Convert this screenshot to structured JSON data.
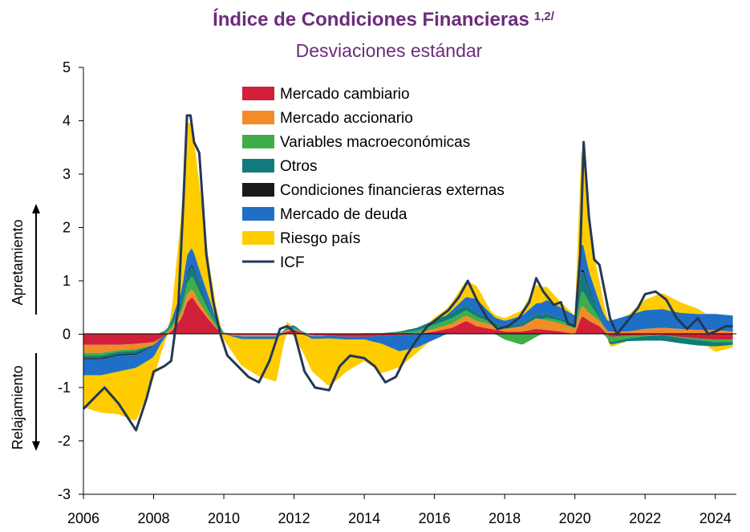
{
  "chart_data": {
    "type": "area",
    "title": "Índice de Condiciones Financieras",
    "title_superscript": "1,2/",
    "subtitle": "Desviaciones estándar",
    "ylim": [
      -3,
      5
    ],
    "xlim": [
      2006,
      2024.6
    ],
    "y_ticks": [
      "5",
      "4",
      "3",
      "2",
      "1",
      "0",
      "-1",
      "-2",
      "-3"
    ],
    "x_ticks": [
      "2006",
      "2008",
      "2010",
      "2012",
      "2014",
      "2016",
      "2018",
      "2020",
      "2022",
      "2024"
    ],
    "y_label_up": "Apretamiento",
    "y_label_down": "Relajamiento",
    "legend_position": "top-center",
    "series": [
      {
        "name": "Mercado cambiario",
        "color": "#d0203a",
        "x": [
          2006.0,
          2006.5,
          2007.0,
          2007.5,
          2008.0,
          2008.5,
          2008.8,
          2008.95,
          2009.1,
          2009.3,
          2009.6,
          2009.8,
          2010.0,
          2010.5,
          2011.0,
          2011.5,
          2011.8,
          2012.0,
          2012.5,
          2013.0,
          2013.5,
          2014.0,
          2014.5,
          2015.0,
          2015.5,
          2016.0,
          2016.5,
          2016.9,
          2017.2,
          2017.6,
          2018.0,
          2018.5,
          2018.9,
          2019.2,
          2019.6,
          2020.0,
          2020.2,
          2020.4,
          2020.7,
          2021.0,
          2021.5,
          2022.0,
          2022.5,
          2023.0,
          2023.5,
          2024.0,
          2024.5
        ],
        "y": [
          -0.2,
          -0.2,
          -0.2,
          -0.18,
          -0.15,
          0.05,
          0.3,
          0.6,
          0.7,
          0.5,
          0.25,
          0.1,
          0.0,
          -0.02,
          -0.02,
          -0.02,
          0.05,
          0.08,
          -0.02,
          -0.03,
          -0.05,
          -0.05,
          -0.03,
          -0.02,
          0.0,
          0.05,
          0.12,
          0.25,
          0.15,
          0.1,
          0.05,
          0.05,
          0.1,
          0.08,
          0.05,
          0.0,
          0.35,
          0.25,
          0.15,
          -0.05,
          -0.03,
          -0.02,
          -0.02,
          -0.05,
          -0.08,
          -0.1,
          -0.1
        ]
      },
      {
        "name": "Mercado accionario",
        "color": "#f28c28",
        "x": [
          2006.0,
          2006.5,
          2007.0,
          2007.5,
          2008.0,
          2008.5,
          2008.8,
          2008.95,
          2009.1,
          2009.3,
          2009.6,
          2009.8,
          2010.0,
          2010.5,
          2011.0,
          2011.5,
          2011.8,
          2012.0,
          2012.5,
          2013.0,
          2013.5,
          2014.0,
          2014.5,
          2015.0,
          2015.5,
          2016.0,
          2016.5,
          2016.9,
          2017.2,
          2017.6,
          2018.0,
          2018.5,
          2018.9,
          2019.2,
          2019.6,
          2020.0,
          2020.2,
          2020.4,
          2020.7,
          2021.0,
          2021.5,
          2022.0,
          2022.5,
          2023.0,
          2023.5,
          2024.0,
          2024.5
        ],
        "y": [
          -0.15,
          -0.15,
          -0.1,
          -0.1,
          -0.05,
          0.05,
          0.1,
          0.15,
          0.15,
          0.1,
          0.05,
          0.02,
          0.0,
          -0.02,
          -0.02,
          -0.02,
          0.03,
          0.02,
          -0.02,
          0.0,
          0.0,
          0.0,
          0.0,
          0.0,
          0.02,
          0.05,
          0.08,
          0.1,
          0.1,
          0.08,
          0.05,
          0.1,
          0.2,
          0.18,
          0.15,
          0.1,
          0.2,
          0.15,
          0.1,
          0.05,
          0.05,
          0.1,
          0.12,
          0.1,
          0.08,
          0.08,
          0.05
        ]
      },
      {
        "name": "Variables macroeconómicas",
        "color": "#3fae49",
        "x": [
          2006.0,
          2006.5,
          2007.0,
          2007.5,
          2008.0,
          2008.5,
          2008.8,
          2008.95,
          2009.1,
          2009.3,
          2009.6,
          2009.8,
          2010.0,
          2010.5,
          2011.0,
          2011.5,
          2011.8,
          2012.0,
          2012.5,
          2013.0,
          2013.5,
          2014.0,
          2014.5,
          2015.0,
          2015.5,
          2016.0,
          2016.5,
          2016.9,
          2017.2,
          2017.6,
          2018.0,
          2018.5,
          2018.9,
          2019.2,
          2019.6,
          2020.0,
          2020.2,
          2020.4,
          2020.7,
          2021.0,
          2021.5,
          2022.0,
          2022.5,
          2023.0,
          2023.5,
          2024.0,
          2024.5
        ],
        "y": [
          -0.05,
          -0.05,
          -0.03,
          -0.03,
          0.0,
          0.05,
          0.1,
          0.2,
          0.25,
          0.2,
          0.1,
          0.05,
          0.03,
          0.0,
          0.0,
          0.0,
          0.02,
          0.02,
          0.0,
          0.0,
          0.0,
          0.02,
          0.02,
          0.03,
          0.05,
          0.08,
          0.1,
          0.1,
          0.08,
          0.05,
          -0.1,
          -0.2,
          -0.05,
          0.05,
          0.05,
          0.05,
          0.3,
          0.2,
          0.05,
          -0.1,
          -0.05,
          -0.02,
          0.0,
          -0.02,
          -0.03,
          -0.05,
          -0.05
        ]
      },
      {
        "name": "Otros",
        "color": "#117a7a",
        "x": [
          2006.0,
          2006.5,
          2007.0,
          2007.5,
          2008.0,
          2008.5,
          2008.8,
          2008.95,
          2009.1,
          2009.3,
          2009.6,
          2009.8,
          2010.0,
          2010.5,
          2011.0,
          2011.5,
          2011.8,
          2012.0,
          2012.5,
          2013.0,
          2013.5,
          2014.0,
          2014.5,
          2015.0,
          2015.5,
          2016.0,
          2016.5,
          2016.9,
          2017.2,
          2017.6,
          2018.0,
          2018.5,
          2018.9,
          2019.2,
          2019.6,
          2020.0,
          2020.2,
          2020.4,
          2020.7,
          2021.0,
          2021.5,
          2022.0,
          2022.5,
          2023.0,
          2023.5,
          2024.0,
          2024.5
        ],
        "y": [
          -0.05,
          -0.05,
          -0.05,
          -0.05,
          -0.02,
          0.05,
          0.1,
          0.15,
          0.2,
          0.15,
          0.08,
          0.03,
          0.0,
          0.0,
          0.0,
          0.0,
          0.02,
          0.02,
          0.0,
          0.0,
          0.0,
          0.0,
          0.0,
          0.02,
          0.05,
          0.08,
          0.1,
          0.1,
          0.08,
          0.06,
          0.05,
          0.05,
          0.08,
          0.08,
          0.05,
          0.05,
          0.4,
          0.25,
          0.1,
          -0.05,
          -0.05,
          -0.08,
          -0.1,
          -0.1,
          -0.1,
          -0.08,
          -0.05
        ]
      },
      {
        "name": "Condiciones financieras externas",
        "color": "#1a1a1a",
        "x": [
          2006.0,
          2006.5,
          2007.0,
          2007.5,
          2008.0,
          2008.5,
          2008.8,
          2008.95,
          2009.1,
          2009.3,
          2009.6,
          2009.8,
          2010.0,
          2010.5,
          2011.0,
          2011.5,
          2011.8,
          2012.0,
          2012.5,
          2013.0,
          2013.5,
          2014.0,
          2014.5,
          2015.0,
          2015.5,
          2016.0,
          2016.5,
          2016.9,
          2017.2,
          2017.6,
          2018.0,
          2018.5,
          2018.9,
          2019.2,
          2019.6,
          2020.0,
          2020.2,
          2020.4,
          2020.7,
          2021.0,
          2021.5,
          2022.0,
          2022.5,
          2023.0,
          2023.5,
          2024.0,
          2024.5
        ],
        "y": [
          -0.02,
          -0.02,
          -0.02,
          -0.02,
          -0.01,
          0.0,
          0.02,
          0.03,
          0.03,
          0.02,
          0.01,
          0.0,
          0.0,
          0.0,
          0.0,
          0.0,
          0.0,
          0.0,
          0.0,
          0.0,
          0.0,
          0.0,
          0.0,
          0.0,
          0.0,
          0.0,
          0.0,
          0.0,
          0.0,
          0.0,
          0.0,
          0.0,
          0.0,
          0.0,
          0.0,
          0.0,
          0.05,
          0.03,
          0.0,
          0.0,
          0.0,
          0.0,
          0.0,
          0.0,
          0.0,
          0.0,
          0.0
        ]
      },
      {
        "name": "Mercado de deuda",
        "color": "#1f6fc6",
        "x": [
          2006.0,
          2006.5,
          2007.0,
          2007.5,
          2008.0,
          2008.5,
          2008.8,
          2008.95,
          2009.1,
          2009.3,
          2009.6,
          2009.8,
          2010.0,
          2010.5,
          2011.0,
          2011.5,
          2011.8,
          2012.0,
          2012.5,
          2013.0,
          2013.5,
          2014.0,
          2014.5,
          2015.0,
          2015.5,
          2016.0,
          2016.5,
          2016.9,
          2017.2,
          2017.6,
          2018.0,
          2018.5,
          2018.9,
          2019.2,
          2019.6,
          2020.0,
          2020.2,
          2020.4,
          2020.7,
          2021.0,
          2021.5,
          2022.0,
          2022.5,
          2023.0,
          2023.5,
          2024.0,
          2024.5
        ],
        "y": [
          -0.3,
          -0.3,
          -0.3,
          -0.25,
          -0.2,
          0.05,
          0.2,
          0.35,
          0.3,
          0.25,
          0.15,
          0.05,
          0.0,
          -0.05,
          -0.05,
          -0.05,
          0.02,
          0.03,
          -0.05,
          -0.05,
          -0.05,
          -0.05,
          -0.15,
          -0.3,
          -0.25,
          -0.1,
          0.05,
          0.15,
          0.25,
          0.1,
          0.1,
          0.15,
          0.2,
          0.25,
          0.2,
          0.15,
          0.5,
          0.3,
          0.2,
          0.2,
          0.3,
          0.35,
          0.35,
          0.3,
          0.3,
          0.3,
          0.3
        ]
      },
      {
        "name": "Riesgo país",
        "color": "#ffcc00",
        "x": [
          2006.0,
          2006.5,
          2007.0,
          2007.5,
          2008.0,
          2008.5,
          2008.8,
          2008.95,
          2009.1,
          2009.3,
          2009.6,
          2009.8,
          2010.0,
          2010.5,
          2011.0,
          2011.5,
          2011.8,
          2012.0,
          2012.5,
          2013.0,
          2013.5,
          2014.0,
          2014.5,
          2015.0,
          2015.5,
          2016.0,
          2016.5,
          2016.9,
          2017.2,
          2017.6,
          2018.0,
          2018.5,
          2018.9,
          2019.2,
          2019.6,
          2020.0,
          2020.2,
          2020.4,
          2020.7,
          2021.0,
          2021.5,
          2022.0,
          2022.5,
          2023.0,
          2023.5,
          2024.0,
          2024.5
        ],
        "y": [
          -0.6,
          -0.7,
          -0.8,
          -1.0,
          -0.4,
          0.1,
          1.5,
          2.5,
          2.3,
          1.6,
          0.6,
          0.2,
          -0.1,
          -0.5,
          -0.7,
          -0.8,
          0.1,
          -0.05,
          -0.6,
          -0.9,
          -0.6,
          -0.4,
          -0.55,
          -0.3,
          -0.1,
          0.05,
          0.15,
          0.3,
          0.25,
          0.05,
          0.05,
          0.1,
          0.35,
          0.25,
          0.1,
          0.0,
          1.9,
          0.75,
          0.4,
          -0.05,
          0.0,
          0.2,
          0.3,
          0.2,
          0.1,
          -0.1,
          -0.05
        ]
      },
      {
        "name": "ICF",
        "color": "#243856",
        "kind": "line",
        "x": [
          2006.0,
          2006.3,
          2006.6,
          2007.0,
          2007.3,
          2007.5,
          2007.8,
          2008.0,
          2008.3,
          2008.5,
          2008.7,
          2008.85,
          2008.95,
          2009.05,
          2009.15,
          2009.3,
          2009.5,
          2009.7,
          2009.9,
          2010.1,
          2010.4,
          2010.7,
          2011.0,
          2011.3,
          2011.6,
          2011.8,
          2012.0,
          2012.3,
          2012.6,
          2013.0,
          2013.3,
          2013.6,
          2014.0,
          2014.3,
          2014.6,
          2014.9,
          2015.2,
          2015.5,
          2015.8,
          2016.1,
          2016.4,
          2016.7,
          2016.95,
          2017.2,
          2017.5,
          2017.8,
          2018.1,
          2018.4,
          2018.7,
          2018.9,
          2019.1,
          2019.4,
          2019.6,
          2019.8,
          2020.0,
          2020.15,
          2020.25,
          2020.4,
          2020.55,
          2020.7,
          2020.85,
          2021.0,
          2021.2,
          2021.5,
          2021.8,
          2022.0,
          2022.3,
          2022.6,
          2022.9,
          2023.2,
          2023.5,
          2023.8,
          2024.0,
          2024.3,
          2024.5
        ],
        "y": [
          -1.4,
          -1.2,
          -1.0,
          -1.3,
          -1.6,
          -1.8,
          -1.2,
          -0.7,
          -0.6,
          -0.5,
          0.5,
          2.5,
          4.1,
          4.1,
          3.6,
          3.4,
          1.5,
          0.6,
          0.0,
          -0.4,
          -0.6,
          -0.8,
          -0.9,
          -0.5,
          0.1,
          0.15,
          0.05,
          -0.7,
          -1.0,
          -1.05,
          -0.6,
          -0.4,
          -0.45,
          -0.6,
          -0.9,
          -0.8,
          -0.4,
          -0.1,
          0.15,
          0.3,
          0.45,
          0.7,
          1.0,
          0.65,
          0.3,
          0.1,
          0.15,
          0.3,
          0.6,
          1.05,
          0.8,
          0.55,
          0.6,
          0.2,
          0.15,
          1.5,
          3.6,
          2.2,
          1.4,
          1.3,
          0.8,
          0.3,
          0.0,
          0.25,
          0.5,
          0.75,
          0.8,
          0.65,
          0.3,
          0.1,
          0.3,
          0.0,
          0.05,
          0.15,
          0.15
        ]
      }
    ]
  }
}
